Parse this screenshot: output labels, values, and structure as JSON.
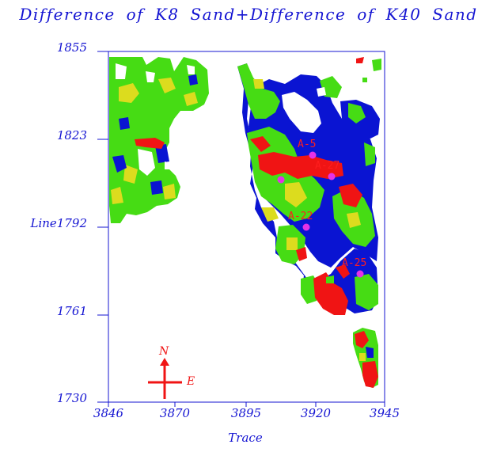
{
  "title": "Difference of K8 Sand+Difference of K40 Sand",
  "y_axis": {
    "ticks": [
      {
        "label": "1855",
        "value": 1855
      },
      {
        "label": "1823",
        "value": 1823
      },
      {
        "label": "Line1792",
        "value": 1792
      },
      {
        "label": "1761",
        "value": 1761
      },
      {
        "label": "1730",
        "value": 1730
      }
    ]
  },
  "x_axis": {
    "title": "Trace",
    "ticks": [
      {
        "label": "3846",
        "value": 3846
      },
      {
        "label": "3870",
        "value": 3870
      },
      {
        "label": "3895",
        "value": 3895
      },
      {
        "label": "3920",
        "value": 3920
      },
      {
        "label": "3945",
        "value": 3945
      }
    ]
  },
  "wells": [
    {
      "label": "A-5",
      "trace": 3920,
      "line": 1821
    },
    {
      "label": "A-27",
      "trace": 3925,
      "line": 1810
    },
    {
      "label": "",
      "trace": 3911,
      "line": 1809
    },
    {
      "label": "A-22",
      "trace": 3915,
      "line": 1792
    },
    {
      "label": "A-25",
      "trace": 3938,
      "line": 1777
    }
  ],
  "compass": {
    "north": "N",
    "east": "E"
  },
  "colors": {
    "axis": "#1414d2",
    "wells": "#e632e6",
    "labels": "#ff1e1e",
    "green": "#46dc14",
    "yellow": "#dcdc1e",
    "blue": "#0a14d2",
    "red": "#f01414"
  }
}
